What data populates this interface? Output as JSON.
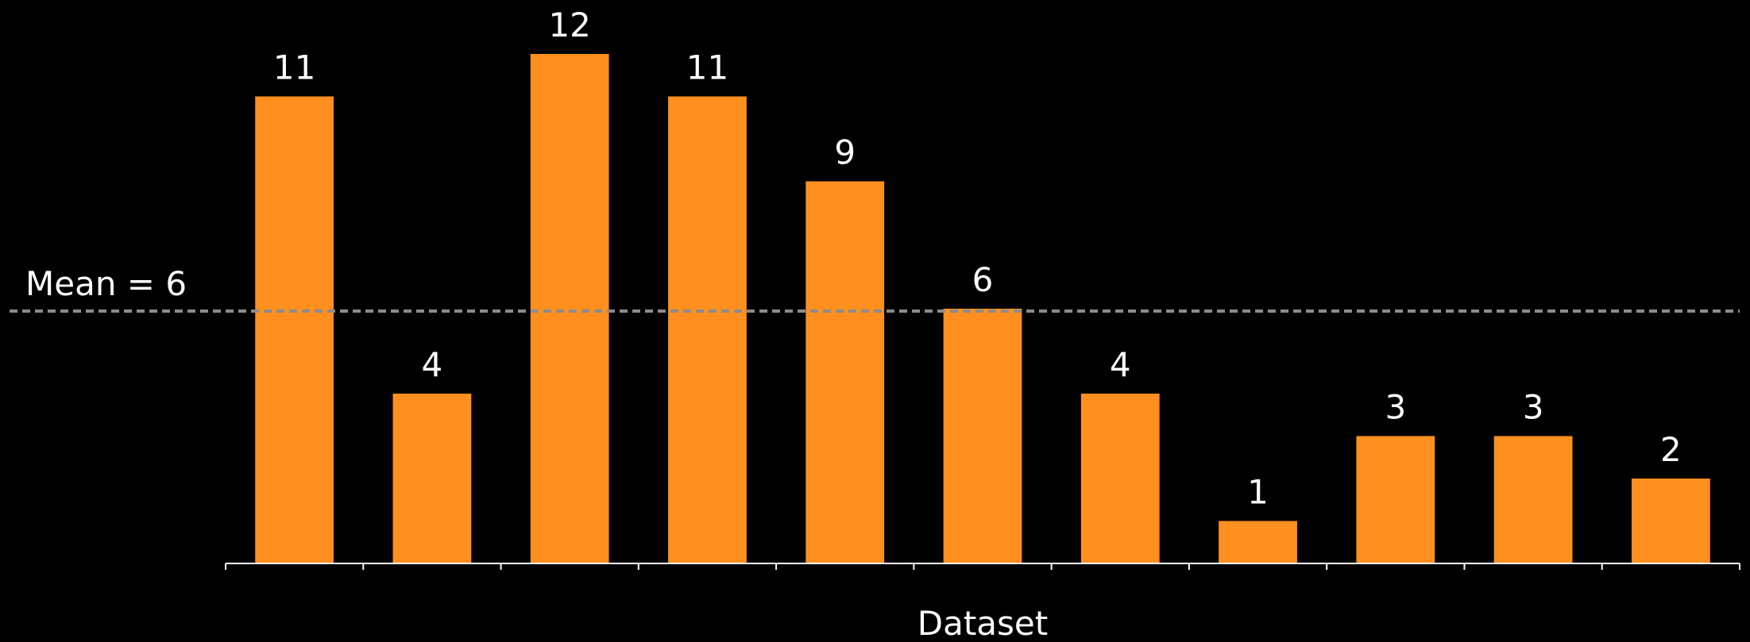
{
  "chart_data": {
    "type": "bar",
    "categories": [
      "",
      "",
      "",
      "",
      "",
      "",
      "",
      "",
      "",
      "",
      ""
    ],
    "values": [
      11,
      4,
      12,
      11,
      9,
      6,
      4,
      1,
      3,
      3,
      2
    ],
    "title": "",
    "xlabel": "Dataset",
    "ylabel": "",
    "ylim": [
      0,
      12
    ],
    "grid": false,
    "bar_color": "#FF9020",
    "mean": {
      "value": 6,
      "label": "Mean = 6",
      "color": "#8C8C8C",
      "style": "dashed"
    }
  }
}
